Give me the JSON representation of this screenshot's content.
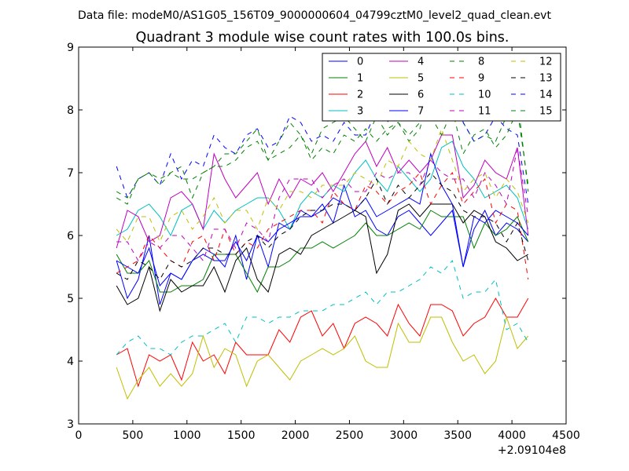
{
  "header": {
    "suptitle": "Data file: modeM0/AS1G05_156T09_9000000604_04799cztM0_level2_quad_clean.evt"
  },
  "chart_data": {
    "type": "line",
    "title": "Quadrant 3 module wise count rates with 100.0s bins.",
    "xlabel": "",
    "ylabel": "",
    "xlim": [
      0,
      4500
    ],
    "ylim": [
      3,
      9
    ],
    "x_offset_label": "+2.09104e8",
    "x_ticks": [
      0,
      500,
      1000,
      1500,
      2000,
      2500,
      3000,
      3500,
      4000,
      4500
    ],
    "y_ticks": [
      3,
      4,
      5,
      6,
      7,
      8,
      9
    ],
    "legend": {
      "location": "top-right",
      "columns": 4
    },
    "x": [
      350,
      450,
      550,
      650,
      750,
      850,
      950,
      1050,
      1150,
      1250,
      1350,
      1450,
      1550,
      1650,
      1750,
      1850,
      1950,
      2050,
      2150,
      2250,
      2350,
      2450,
      2550,
      2650,
      2750,
      2850,
      2950,
      3050,
      3150,
      3250,
      3350,
      3450,
      3550,
      3650,
      3750,
      3850,
      3950,
      4050,
      4150
    ],
    "series": [
      {
        "name": "0",
        "color": "#0000ff",
        "dash": "solid",
        "values": [
          5.6,
          5.0,
          5.3,
          6.0,
          4.9,
          5.4,
          5.3,
          5.6,
          5.8,
          5.7,
          5.5,
          6.0,
          5.3,
          6.0,
          5.5,
          6.2,
          6.1,
          6.4,
          6.3,
          6.5,
          6.2,
          6.8,
          6.3,
          6.4,
          6.1,
          6.0,
          6.3,
          6.4,
          6.2,
          6.0,
          6.2,
          6.4,
          5.5,
          6.1,
          6.4,
          6.0,
          6.2,
          6.1,
          5.9
        ]
      },
      {
        "name": "1",
        "color": "#008000",
        "dash": "solid",
        "values": [
          5.7,
          5.4,
          5.4,
          5.6,
          5.1,
          5.1,
          5.2,
          5.2,
          5.3,
          5.7,
          5.7,
          5.7,
          5.4,
          5.1,
          5.5,
          5.5,
          5.6,
          5.8,
          5.8,
          5.9,
          5.8,
          5.9,
          6.0,
          6.2,
          6.0,
          6.0,
          6.1,
          6.2,
          6.1,
          6.4,
          6.3,
          6.3,
          6.3,
          5.8,
          6.2,
          6.0,
          6.1,
          6.3,
          5.9
        ]
      },
      {
        "name": "2",
        "color": "#ff0000",
        "dash": "solid",
        "values": [
          4.1,
          4.2,
          3.6,
          4.1,
          4.0,
          4.1,
          3.7,
          4.3,
          4.0,
          4.1,
          3.8,
          4.3,
          4.1,
          4.1,
          4.1,
          4.5,
          4.3,
          4.7,
          4.8,
          4.4,
          4.6,
          4.2,
          4.6,
          4.7,
          4.6,
          4.4,
          4.9,
          4.6,
          4.4,
          4.9,
          4.9,
          4.8,
          4.4,
          4.6,
          4.7,
          5.0,
          4.7,
          4.7,
          5.0
        ]
      },
      {
        "name": "3",
        "color": "#00bfbf",
        "dash": "solid",
        "values": [
          6.0,
          6.1,
          6.4,
          6.5,
          6.3,
          6.0,
          6.4,
          6.5,
          6.1,
          6.4,
          6.2,
          6.4,
          6.5,
          6.6,
          6.6,
          6.4,
          6.1,
          6.5,
          6.7,
          6.6,
          6.8,
          6.7,
          7.0,
          7.2,
          6.9,
          6.7,
          7.1,
          6.9,
          6.7,
          6.9,
          7.4,
          7.5,
          7.1,
          6.9,
          6.6,
          6.7,
          6.8,
          6.6,
          6.1
        ]
      },
      {
        "name": "4",
        "color": "#bf00bf",
        "dash": "solid",
        "values": [
          5.8,
          6.4,
          6.3,
          5.9,
          6.0,
          6.6,
          6.7,
          6.5,
          6.1,
          7.3,
          6.9,
          6.6,
          6.8,
          7.0,
          6.5,
          6.9,
          6.6,
          6.9,
          6.8,
          7.0,
          6.7,
          7.0,
          7.3,
          7.5,
          7.1,
          7.4,
          7.0,
          7.2,
          7.0,
          7.2,
          7.6,
          7.6,
          6.6,
          6.8,
          7.2,
          7.0,
          6.9,
          7.4,
          6.0
        ]
      },
      {
        "name": "5",
        "color": "#bfbf00",
        "dash": "solid",
        "values": [
          3.9,
          3.4,
          3.7,
          3.9,
          3.6,
          3.8,
          3.6,
          3.8,
          4.4,
          3.9,
          4.2,
          4.1,
          3.6,
          4.0,
          4.1,
          3.9,
          3.7,
          4.0,
          4.1,
          4.2,
          4.1,
          4.2,
          4.4,
          4.0,
          3.9,
          3.9,
          4.6,
          4.3,
          4.3,
          4.7,
          4.7,
          4.3,
          4.0,
          4.1,
          3.8,
          4.0,
          4.7,
          4.2,
          4.4
        ]
      },
      {
        "name": "6",
        "color": "#000000",
        "dash": "solid",
        "values": [
          5.2,
          4.9,
          5.0,
          5.5,
          4.8,
          5.3,
          5.1,
          5.2,
          5.2,
          5.5,
          5.1,
          5.6,
          5.8,
          5.3,
          5.1,
          5.7,
          5.8,
          5.7,
          6.0,
          6.1,
          6.2,
          6.3,
          6.4,
          6.3,
          5.4,
          5.7,
          6.4,
          6.5,
          6.3,
          6.5,
          6.5,
          6.5,
          6.2,
          6.4,
          6.3,
          5.9,
          5.8,
          5.6,
          5.7
        ]
      },
      {
        "name": "7",
        "color": "#0000ff",
        "dash": "solid",
        "values": [
          5.6,
          5.5,
          5.4,
          5.8,
          5.2,
          5.4,
          5.3,
          5.6,
          5.7,
          5.6,
          5.6,
          5.9,
          5.6,
          6.0,
          5.9,
          6.1,
          6.2,
          6.3,
          6.3,
          6.4,
          6.6,
          6.5,
          6.4,
          6.6,
          6.3,
          6.4,
          6.5,
          6.6,
          6.5,
          7.3,
          6.8,
          6.5,
          5.5,
          6.3,
          6.2,
          6.4,
          6.3,
          6.2,
          6.0
        ]
      },
      {
        "name": "8",
        "color": "#008000",
        "dash": "dashed",
        "values": [
          6.6,
          6.5,
          6.9,
          7.0,
          6.9,
          7.0,
          7.1,
          6.6,
          7.0,
          7.1,
          7.3,
          7.3,
          7.5,
          7.7,
          7.2,
          7.5,
          7.8,
          7.6,
          7.3,
          7.7,
          7.8,
          7.9,
          7.7,
          7.5,
          7.9,
          7.6,
          7.8,
          7.5,
          7.7,
          8.3,
          7.8,
          8.4,
          7.8,
          7.5,
          7.6,
          7.5,
          7.9,
          8.2,
          6.7
        ]
      },
      {
        "name": "9",
        "color": "#ff0000",
        "dash": "dashed",
        "values": [
          5.4,
          5.5,
          5.6,
          6.0,
          5.8,
          5.6,
          5.5,
          5.9,
          6.0,
          5.6,
          6.1,
          5.7,
          5.9,
          5.8,
          6.1,
          6.2,
          6.3,
          6.4,
          6.4,
          6.2,
          6.7,
          6.5,
          6.4,
          6.8,
          6.7,
          6.5,
          6.7,
          6.8,
          7.0,
          6.5,
          6.8,
          7.0,
          6.5,
          6.7,
          6.9,
          6.2,
          6.5,
          6.4,
          5.3
        ]
      },
      {
        "name": "10",
        "color": "#00bfbf",
        "dash": "dashed",
        "values": [
          4.1,
          4.3,
          4.4,
          4.2,
          4.2,
          4.1,
          4.3,
          4.4,
          4.4,
          4.5,
          4.6,
          4.3,
          4.7,
          4.7,
          4.6,
          4.7,
          4.7,
          4.8,
          4.8,
          4.8,
          4.9,
          4.9,
          5.0,
          5.1,
          4.9,
          5.1,
          5.1,
          5.2,
          5.3,
          5.5,
          5.4,
          5.6,
          5.0,
          5.1,
          5.1,
          5.3,
          4.5,
          4.6,
          4.3
        ]
      },
      {
        "name": "11",
        "color": "#bf00bf",
        "dash": "dashed",
        "values": [
          5.9,
          5.9,
          5.6,
          5.9,
          5.8,
          6.0,
          6.0,
          5.8,
          5.6,
          6.1,
          6.1,
          5.8,
          6.2,
          6.1,
          5.9,
          6.6,
          6.9,
          6.9,
          6.9,
          6.6,
          6.8,
          6.9,
          6.7,
          6.7,
          7.0,
          6.9,
          7.0,
          7.0,
          6.8,
          7.2,
          7.0,
          6.9,
          6.9,
          6.6,
          7.0,
          6.8,
          6.5,
          7.4,
          6.3
        ]
      },
      {
        "name": "12",
        "color": "#bfbf00",
        "dash": "dashed",
        "values": [
          6.1,
          5.9,
          6.3,
          6.3,
          5.9,
          6.3,
          6.4,
          6.1,
          6.3,
          6.6,
          6.2,
          6.4,
          6.4,
          6.1,
          6.6,
          6.4,
          6.7,
          6.7,
          6.6,
          6.8,
          6.8,
          6.8,
          7.0,
          6.9,
          6.8,
          7.2,
          7.1,
          7.5,
          7.3,
          7.2,
          7.7,
          7.2,
          6.7,
          6.9,
          7.0,
          6.6,
          6.9,
          6.7,
          6.2
        ]
      },
      {
        "name": "13",
        "color": "#000000",
        "dash": "dashed",
        "values": [
          5.4,
          5.3,
          5.6,
          5.5,
          5.3,
          5.6,
          5.5,
          5.6,
          5.8,
          5.8,
          5.7,
          5.7,
          5.9,
          6.0,
          5.8,
          6.0,
          6.1,
          6.3,
          6.4,
          6.4,
          6.5,
          6.5,
          6.4,
          6.6,
          6.9,
          6.5,
          6.8,
          6.6,
          6.8,
          7.0,
          6.8,
          6.7,
          6.4,
          6.3,
          6.3,
          6.2,
          5.9,
          6.2,
          5.6
        ]
      },
      {
        "name": "14",
        "color": "#0000ff",
        "dash": "dashed",
        "values": [
          7.1,
          6.6,
          6.9,
          7.0,
          6.8,
          7.3,
          6.9,
          7.2,
          7.1,
          7.6,
          7.4,
          7.3,
          7.6,
          7.7,
          7.4,
          7.5,
          7.9,
          7.8,
          7.5,
          7.6,
          7.5,
          7.8,
          7.6,
          7.6,
          8.0,
          7.8,
          8.1,
          8.0,
          8.2,
          8.0,
          8.2,
          8.6,
          7.8,
          7.5,
          7.6,
          7.9,
          7.7,
          7.6,
          6.5
        ]
      },
      {
        "name": "15",
        "color": "#008000",
        "dash": "dashed",
        "values": [
          6.7,
          6.6,
          6.9,
          7.0,
          6.8,
          7.0,
          6.9,
          6.9,
          7.0,
          7.1,
          7.1,
          7.2,
          7.4,
          7.5,
          7.2,
          7.3,
          7.4,
          7.6,
          7.2,
          7.4,
          7.3,
          7.6,
          7.5,
          7.7,
          7.5,
          7.7,
          7.8,
          7.6,
          7.8,
          7.9,
          7.6,
          8.0,
          7.3,
          7.6,
          7.7,
          7.4,
          7.6,
          8.0,
          6.8
        ]
      }
    ]
  }
}
